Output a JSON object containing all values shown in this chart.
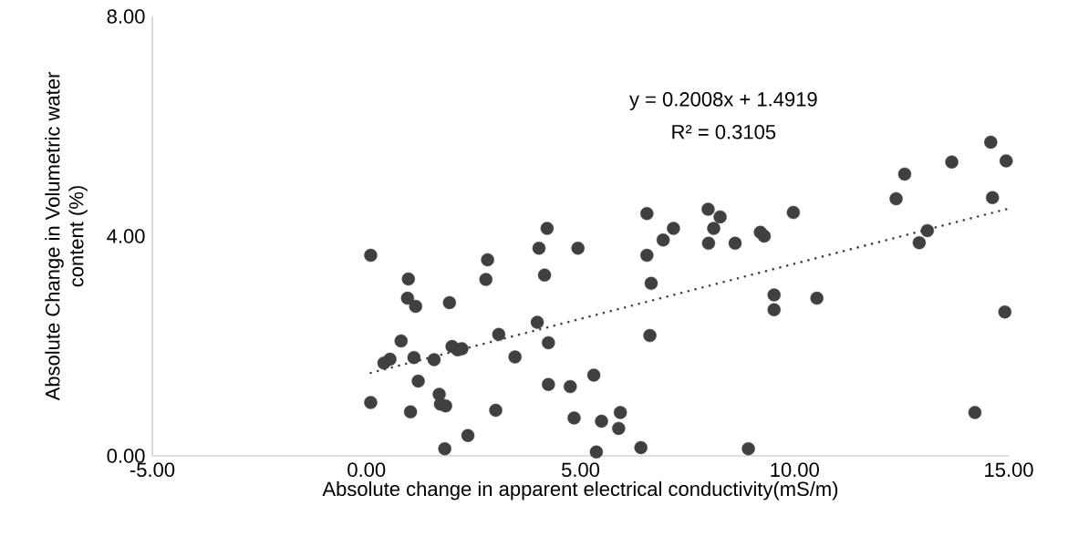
{
  "chart_data": {
    "type": "scatter",
    "xlabel": "Absolute change in apparent electrical conductivity(mS/m)",
    "ylabel": "Absolute Change in Volumetric water content (%)",
    "annotations": [
      "y = 0.2008x + 1.4919",
      "R² = 0.3105"
    ],
    "xlim": [
      -5,
      15
    ],
    "ylim": [
      0,
      8
    ],
    "xticks": [
      {
        "value": -5,
        "label": "-5.00"
      },
      {
        "value": 0,
        "label": "0.00"
      },
      {
        "value": 5,
        "label": "5.00"
      },
      {
        "value": 10,
        "label": "10.00"
      },
      {
        "value": 15,
        "label": "15.00"
      }
    ],
    "yticks": [
      {
        "value": 0,
        "label": "0.00"
      },
      {
        "value": 4,
        "label": "4.00"
      },
      {
        "value": 8,
        "label": "8.00"
      }
    ],
    "series": [
      {
        "marker": "circle",
        "color": "#404040",
        "x": [
          0.1,
          0.98,
          0.96,
          1.15,
          1.94,
          2.83,
          2.79,
          4.22,
          4.03,
          4.16,
          4.94,
          6.55,
          6.55,
          6.93,
          7.17,
          6.65,
          6.62,
          0.81,
          0.55,
          0.41,
          1.11,
          1.58,
          2.0,
          2.23,
          2.13,
          3.09,
          3.99,
          4.25,
          3.47,
          1.21,
          0.1,
          1.03,
          1.7,
          1.73,
          1.85,
          3.02,
          2.37,
          1.83,
          4.25,
          4.76,
          5.31,
          4.85,
          5.49,
          5.93,
          5.89,
          5.37,
          6.41,
          7.98,
          8.26,
          8.11,
          7.99,
          8.61,
          9.2,
          9.29,
          9.97,
          9.52,
          9.52,
          10.52,
          8.92,
          12.37,
          12.57,
          13.67,
          14.58,
          14.94,
          14.62,
          13.1,
          12.91,
          14.91,
          14.21
        ],
        "values": [
          3.65,
          3.22,
          2.87,
          2.72,
          2.79,
          3.57,
          3.21,
          4.14,
          3.78,
          3.29,
          3.78,
          4.41,
          3.65,
          3.93,
          4.14,
          3.14,
          2.19,
          2.09,
          1.76,
          1.69,
          1.79,
          1.75,
          1.99,
          1.95,
          1.93,
          2.21,
          2.43,
          2.06,
          1.8,
          1.36,
          0.97,
          0.8,
          1.12,
          0.94,
          0.91,
          0.83,
          0.37,
          0.13,
          1.3,
          1.26,
          1.47,
          0.69,
          0.63,
          0.79,
          0.5,
          0.07,
          0.15,
          4.49,
          4.35,
          4.14,
          3.87,
          3.87,
          4.07,
          4.0,
          4.43,
          2.93,
          2.66,
          2.87,
          0.13,
          4.68,
          5.13,
          5.35,
          5.71,
          5.37,
          4.7,
          4.1,
          3.88,
          2.62,
          0.79
        ]
      },
      {
        "type": "line",
        "color": "#404040",
        "line_style": "dotted",
        "marker": "none",
        "x": [
          0.1,
          14.94
        ],
        "values": [
          1.51,
          4.49
        ]
      }
    ]
  }
}
